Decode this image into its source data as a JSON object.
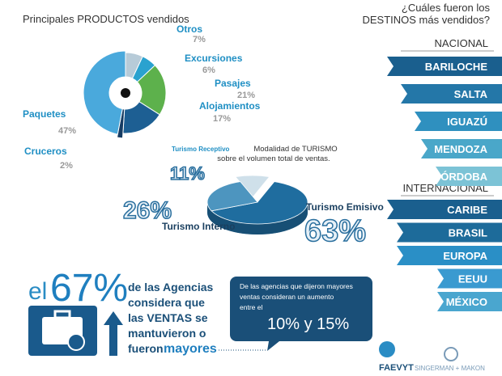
{
  "chart_data": [
    {
      "type": "donut",
      "title": "Principales PRODUCTOS vendidos",
      "categories": [
        "Otros",
        "Excursiones",
        "Pasajes",
        "Alojamientos",
        "Cruceros",
        "Paquetes"
      ],
      "values": [
        7,
        6,
        21,
        17,
        2,
        47
      ],
      "value_labels": [
        "7%",
        "6%",
        "21%",
        "17%",
        "2%",
        "47%"
      ],
      "colors": [
        "#b7cbd8",
        "#2aa2cf",
        "#5db14c",
        "#1d5f93",
        "#163c63",
        "#4aa9dc"
      ]
    },
    {
      "type": "pie3d",
      "title": "Modalidad de TURISMO",
      "subtitle": "sobre el volumen total de ventas.",
      "categories": [
        "Turismo Receptivo",
        "Turismo Emisivo",
        "Turismo Interno"
      ],
      "values": [
        11,
        63,
        26
      ],
      "value_labels": [
        "11%",
        "63%",
        "26%"
      ],
      "colors": [
        "#cfe0ea",
        "#1f6d9f",
        "#4d95bf"
      ]
    }
  ],
  "destinos": {
    "title": "¿Cuáles fueron los",
    "title2": "DESTINOS más vendidos?",
    "nacional": {
      "label": "NACIONAL",
      "items": [
        "BARILOCHE",
        "SALTA",
        "IGUAZÚ",
        "MENDOZA",
        "CÓRDOBA"
      ]
    },
    "internacional": {
      "label": "INTERNACIONAL",
      "items": [
        "CARIBE",
        "BRASIL",
        "EUROPA",
        "EEUU",
        "MÉXICO"
      ]
    }
  },
  "highlight": {
    "el": "el",
    "pct": "67%",
    "lines": [
      "de las Agencias",
      "considera que",
      "las VENTAS se",
      "mantuvieron o"
    ],
    "last": "fueron",
    "last_bold": "mayores"
  },
  "callout": {
    "lines": [
      "De las agencias que dijeron mayores",
      "ventas consideran un aumento",
      "entre el"
    ],
    "range": "10% y 15%"
  },
  "logos": {
    "faevyt": "FAEVYT",
    "sm": "SINGERMAN + MAKON"
  }
}
